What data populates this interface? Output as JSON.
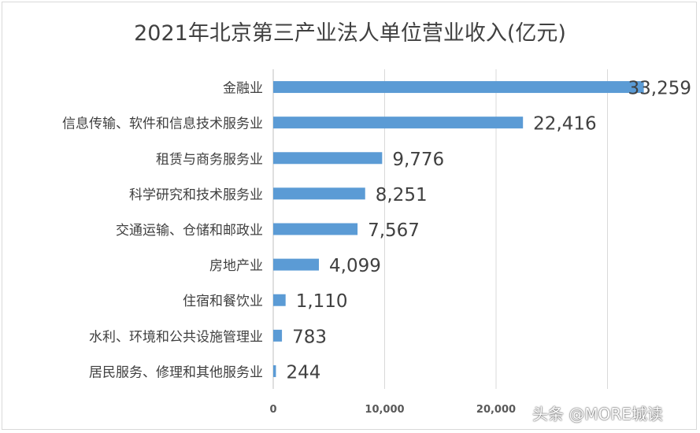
{
  "chart_data": {
    "type": "bar",
    "orientation": "horizontal",
    "title": "2021年北京第三产业法人单位营业收入(亿元)",
    "xlabel": "",
    "ylabel": "",
    "categories": [
      "金融业",
      "信息传输、软件和信息技术服务业",
      "租赁与商务服务业",
      "科学研究和技术服务业",
      "交通运输、仓储和邮政业",
      "房地产业",
      "住宿和餐饮业",
      "水利、环境和公共设施管理业",
      "居民服务、修理和其他服务业"
    ],
    "values": [
      33259,
      22416,
      9776,
      8251,
      7567,
      4099,
      1110,
      783,
      244
    ],
    "value_labels": [
      "33,259",
      "22,416",
      "9,776",
      "8,251",
      "7,567",
      "4,099",
      "1,110",
      "783",
      "244"
    ],
    "xticks": [
      0,
      10000,
      20000
    ],
    "xtick_labels": [
      "0",
      "10,000",
      "20,000"
    ],
    "xlim": [
      0,
      35000
    ],
    "grid": true,
    "legend": "none",
    "bar_color": "#5b9bd5"
  },
  "watermark": "头条 @MORE城读"
}
